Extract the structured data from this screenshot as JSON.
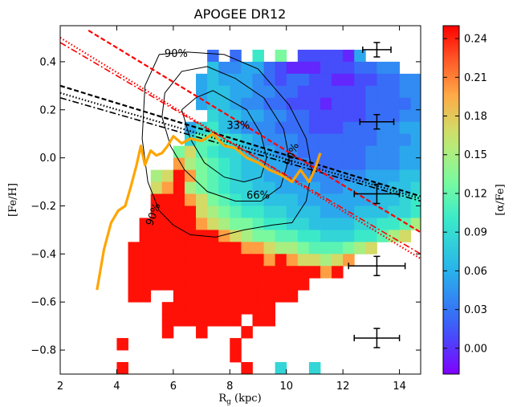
{
  "chart_data": {
    "type": "heatmap",
    "title": "APOGEE DR12",
    "xlabel_main": "R",
    "xlabel_sub": "g",
    "xlabel_unit": " (kpc)",
    "ylabel": "[Fe/H]",
    "colorbar_label": "[α/Fe]",
    "xlim": [
      2.0,
      14.75
    ],
    "ylim": [
      -0.9,
      0.55
    ],
    "x_ticks": [
      2,
      4,
      6,
      8,
      10,
      12,
      14
    ],
    "x_tick_labels": [
      "2",
      "4",
      "6",
      "8",
      "10",
      "12",
      "14"
    ],
    "y_ticks": [
      0.4,
      0.2,
      0.0,
      -0.2,
      -0.4,
      -0.6,
      -0.8
    ],
    "y_tick_labels": [
      "0.4",
      "0.2",
      "0.0",
      "−0.2",
      "−0.4",
      "−0.6",
      "−0.8"
    ],
    "colorbar": {
      "range": [
        -0.02,
        0.25
      ],
      "ticks": [
        0.0,
        0.03,
        0.06,
        0.09,
        0.12,
        0.15,
        0.18,
        0.21,
        0.24
      ],
      "tick_labels": [
        "0.00",
        "0.03",
        "0.06",
        "0.09",
        "0.12",
        "0.15",
        "0.18",
        "0.21",
        "0.24"
      ],
      "colormap": "rainbow"
    },
    "bins": {
      "x0": 3.2,
      "dx": 0.4,
      "y0": 0.5,
      "dy": 0.05,
      "rows": [
        "...............................",
        "..........C.C.H.J.BBBBAE...........",
        "..........FDDEECBAAABBBCCDD.......",
        ".........EFEEEDCBCCBBAABBCCDD..........................B",
        ".........EFFEEDDCCBBBBBBCCCDDD....E........................",
        ".........EFFEDDCCBBBABBBCCCCDDFEF......",
        "..........GFFEEDDCCBBBBBCCCDDEEFGH....",
        "........EGHFEDDDCCCBBBCCCDDEEFFG.....",
        "........GIIHGFEDDDCCCCCCCDDDEEEFG.....",
        ".......JLIHGGFEEDDCCCCCCDDDEEEFFGHA.....",
        ".......MKJIHGFFEEDDCCCCCDDDEEEFGHIJ....",
        ".....KLNMJIHGFFEEDDDDDDDEEEFFGHGF.....",
        ".....LMNKJIHGGFFEEEEDDEEEEFFGHIGF....",
        ".....NNNMLJIHGGFFFEEEEEEEFFGHHHG.....",
        ".....NNNNLKJIHHGGFFFEEEFFFGGHIJ........",
        "....NNNNNMLKJJIHHGGFFFFGGHHIK.........",
        "....NNNNNNNMLKJJIIHHGGGHHIKL..........",
        "...NNNNNNNNNNMMLKKJIIIJKL.............",
        "...NNNNNNNNNNNNMNMLLKLM...............",
        "...NNNNNNNNNNNNNNNNNMN...............",
        "...NNNNNNNNNNNNNNNN..................",
        "...NN..NNNNNNNNNNN...................",
        "......NNNNNNNNNN.....................",
        "......NNNNNNN.NN.....................",
        "......N..N...N......................",
        "..N.........N.....................N",
        "............N........................",
        "..N..........N..G..G.................",
        ".....................................",
        "...NN................................"
      ],
      "palette": {
        "A": -0.005,
        "B": 0.01,
        "C": 0.025,
        "D": 0.04,
        "E": 0.055,
        "F": 0.07,
        "G": 0.085,
        "H": 0.1,
        "I": 0.115,
        "J": 0.13,
        "K": 0.15,
        "L": 0.17,
        "M": 0.2,
        "N": 0.245
      }
    },
    "running_median": {
      "color": "#ffa500",
      "x": [
        3.3,
        3.55,
        3.8,
        4.05,
        4.3,
        4.5,
        4.7,
        4.85,
        5.0,
        5.2,
        5.4,
        5.6,
        5.8,
        6.0,
        6.3,
        6.6,
        7.0,
        7.4,
        7.8,
        8.2,
        8.6,
        9.0,
        9.4,
        9.8,
        10.2,
        10.5,
        10.8,
        11.0,
        11.2
      ],
      "y": [
        -0.55,
        -0.38,
        -0.27,
        -0.22,
        -0.2,
        -0.12,
        -0.03,
        0.05,
        -0.03,
        0.03,
        0.01,
        0.02,
        0.05,
        0.09,
        0.06,
        0.08,
        0.07,
        0.1,
        0.05,
        0.04,
        0.0,
        -0.02,
        -0.05,
        -0.07,
        -0.1,
        -0.05,
        -0.1,
        -0.05,
        0.02
      ]
    },
    "gradient_lines": [
      {
        "name": "",
        "color": "#000000",
        "dash": "6,3",
        "width": 2.2,
        "x": [
          2.0,
          14.75
        ],
        "y": [
          0.3,
          -0.16
        ]
      },
      {
        "name": "",
        "color": "#000000",
        "dash": "1.5,2.5",
        "width": 2.2,
        "x": [
          2.0,
          14.75
        ],
        "y": [
          0.27,
          -0.17
        ]
      },
      {
        "name": "",
        "color": "#000000",
        "dash": "8,3,2,3",
        "width": 1.6,
        "x": [
          2.0,
          14.75
        ],
        "y": [
          0.25,
          -0.18
        ]
      },
      {
        "name": "",
        "color": "#ff0000",
        "dash": "6,3",
        "width": 2.2,
        "x": [
          3.0,
          14.75
        ],
        "y": [
          0.53,
          -0.31
        ]
      },
      {
        "name": "",
        "color": "#ff0000",
        "dash": "1.5,2.5",
        "width": 2.2,
        "x": [
          2.0,
          14.75
        ],
        "y": [
          0.5,
          -0.42
        ]
      },
      {
        "name": "",
        "color": "#ff0000",
        "dash": "8,3,2,3",
        "width": 1.6,
        "x": [
          2.0,
          14.75
        ],
        "y": [
          0.48,
          -0.4
        ]
      }
    ],
    "contours": [
      {
        "label": "33%",
        "label_x": 8.3,
        "label_y": 0.12,
        "x": [
          6.3,
          6.8,
          7.4,
          8.0,
          8.6,
          9.1,
          9.3,
          9.1,
          8.5,
          7.8,
          7.1,
          6.6,
          6.3
        ],
        "y": [
          0.2,
          0.25,
          0.28,
          0.24,
          0.2,
          0.1,
          0.0,
          -0.08,
          -0.1,
          -0.08,
          -0.02,
          0.08,
          0.2
        ]
      },
      {
        "label": "66%",
        "label_x": 9.0,
        "label_y": -0.17,
        "x": [
          5.7,
          6.3,
          7.2,
          8.2,
          9.2,
          9.9,
          10.1,
          9.8,
          9.1,
          8.2,
          7.2,
          6.4,
          5.9,
          5.6,
          5.7
        ],
        "y": [
          0.27,
          0.36,
          0.38,
          0.33,
          0.25,
          0.12,
          0.0,
          -0.12,
          -0.18,
          -0.18,
          -0.14,
          -0.05,
          0.05,
          0.17,
          0.27
        ]
      },
      {
        "label": "90%",
        "label_x": 6.1,
        "label_y": 0.42,
        "x": [
          5.0,
          5.5,
          6.5,
          7.8,
          9.0,
          10.1,
          10.7,
          10.9,
          10.7,
          10.2,
          9.5,
          8.5,
          7.5,
          6.6,
          6.0,
          5.5,
          5.1,
          4.9,
          5.0
        ],
        "y": [
          0.3,
          0.43,
          0.44,
          0.43,
          0.37,
          0.22,
          0.08,
          -0.05,
          -0.18,
          -0.27,
          -0.28,
          -0.3,
          -0.33,
          -0.32,
          -0.28,
          -0.22,
          -0.1,
          0.08,
          0.3
        ]
      }
    ],
    "extra_contour_labels": [
      {
        "label": "90%",
        "x": 10.3,
        "y": 0.01
      },
      {
        "label": "90%",
        "x": 5.4,
        "y": -0.24
      }
    ],
    "error_bars": [
      {
        "x": 13.2,
        "y": 0.45,
        "xerr": 0.5,
        "yerr": 0.03
      },
      {
        "x": 13.2,
        "y": 0.15,
        "xerr": 0.6,
        "yerr": 0.03
      },
      {
        "x": 13.2,
        "y": -0.15,
        "xerr": 0.8,
        "yerr": 0.04
      },
      {
        "x": 13.2,
        "y": -0.45,
        "xerr": 1.0,
        "yerr": 0.04
      },
      {
        "x": 13.2,
        "y": -0.75,
        "xerr": 0.8,
        "yerr": 0.04
      }
    ]
  }
}
